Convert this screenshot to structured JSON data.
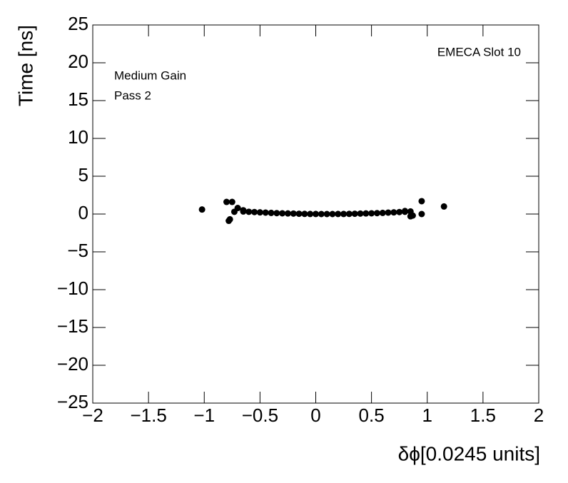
{
  "chart_data": {
    "type": "scatter",
    "title": "EMECA Slot 10",
    "annotations": [
      "Medium Gain",
      "Pass 2"
    ],
    "x_label": "δϕ[0.0245 units]",
    "y_label": "Time [ns]",
    "color": "#000000",
    "x": [
      -0.65,
      -0.6,
      -0.55,
      -0.5,
      -0.45,
      -0.4,
      -0.35,
      -0.3,
      -0.25,
      -0.2,
      -0.15,
      -0.1,
      -0.05,
      0,
      0.05,
      0.1,
      0.15,
      0.2,
      0.25,
      0.3,
      0.35,
      0.4,
      0.45,
      0.5,
      0.55,
      0.6,
      0.65,
      0.7,
      0.75,
      0.8,
      0.85,
      -1.02,
      -0.8,
      -0.75,
      -0.77,
      -0.78,
      -0.73,
      -0.7,
      -0.65,
      0.95,
      0.95,
      1.15,
      0.85,
      0.87,
      0.8
    ],
    "values": [
      0.34,
      0.3,
      0.26,
      0.22,
      0.19,
      0.15,
      0.12,
      0.1,
      0.08,
      0.06,
      0.04,
      0.02,
      0.01,
      0.01,
      0,
      0,
      0,
      0.01,
      0.01,
      0.02,
      0.04,
      0.06,
      0.08,
      0.1,
      0.12,
      0.15,
      0.19,
      0.22,
      0.26,
      0.3,
      0.34,
      0.6,
      1.6,
      1.6,
      -0.7,
      -0.9,
      0.3,
      0.8,
      0.5,
      1.7,
      0.0,
      1.0,
      -0.3,
      -0.2,
      0.4
    ],
    "xlim": [
      -2,
      2
    ],
    "ylim": [
      -25,
      25
    ],
    "xticks": [
      {
        "value": -2,
        "label": "−2"
      },
      {
        "value": -1.5,
        "label": "−1.5"
      },
      {
        "value": -1,
        "label": "−1"
      },
      {
        "value": -0.5,
        "label": "−0.5"
      },
      0,
      0.5,
      1,
      1.5,
      2
    ],
    "yticks": [
      {
        "value": -25,
        "label": "−25"
      },
      {
        "value": -20,
        "label": "−20"
      },
      {
        "value": -15,
        "label": "−15"
      },
      {
        "value": -10,
        "label": "−10"
      },
      {
        "value": -5,
        "label": "−5"
      },
      0,
      5,
      10,
      15,
      20,
      25
    ]
  }
}
